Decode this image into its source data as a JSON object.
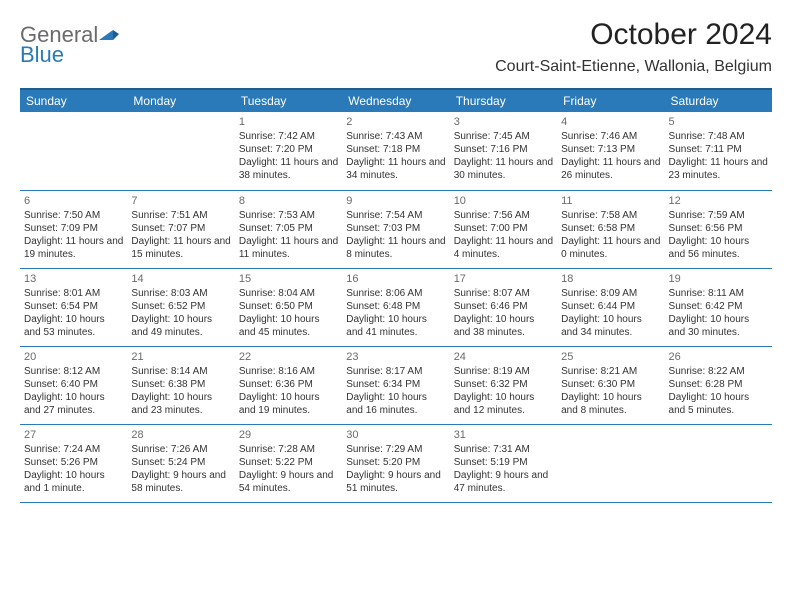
{
  "logo": {
    "word1": "General",
    "word2": "Blue"
  },
  "title": "October 2024",
  "location": "Court-Saint-Etienne, Wallonia, Belgium",
  "colors": {
    "header_bg": "#2a7ab9",
    "header_border": "#1f5d8f",
    "text": "#333333",
    "muted": "#6b6b6b",
    "bg": "#ffffff"
  },
  "day_headers": [
    "Sunday",
    "Monday",
    "Tuesday",
    "Wednesday",
    "Thursday",
    "Friday",
    "Saturday"
  ],
  "weeks": [
    [
      null,
      null,
      {
        "n": "1",
        "sr": "Sunrise: 7:42 AM",
        "ss": "Sunset: 7:20 PM",
        "dl": "Daylight: 11 hours and 38 minutes."
      },
      {
        "n": "2",
        "sr": "Sunrise: 7:43 AM",
        "ss": "Sunset: 7:18 PM",
        "dl": "Daylight: 11 hours and 34 minutes."
      },
      {
        "n": "3",
        "sr": "Sunrise: 7:45 AM",
        "ss": "Sunset: 7:16 PM",
        "dl": "Daylight: 11 hours and 30 minutes."
      },
      {
        "n": "4",
        "sr": "Sunrise: 7:46 AM",
        "ss": "Sunset: 7:13 PM",
        "dl": "Daylight: 11 hours and 26 minutes."
      },
      {
        "n": "5",
        "sr": "Sunrise: 7:48 AM",
        "ss": "Sunset: 7:11 PM",
        "dl": "Daylight: 11 hours and 23 minutes."
      }
    ],
    [
      {
        "n": "6",
        "sr": "Sunrise: 7:50 AM",
        "ss": "Sunset: 7:09 PM",
        "dl": "Daylight: 11 hours and 19 minutes."
      },
      {
        "n": "7",
        "sr": "Sunrise: 7:51 AM",
        "ss": "Sunset: 7:07 PM",
        "dl": "Daylight: 11 hours and 15 minutes."
      },
      {
        "n": "8",
        "sr": "Sunrise: 7:53 AM",
        "ss": "Sunset: 7:05 PM",
        "dl": "Daylight: 11 hours and 11 minutes."
      },
      {
        "n": "9",
        "sr": "Sunrise: 7:54 AM",
        "ss": "Sunset: 7:03 PM",
        "dl": "Daylight: 11 hours and 8 minutes."
      },
      {
        "n": "10",
        "sr": "Sunrise: 7:56 AM",
        "ss": "Sunset: 7:00 PM",
        "dl": "Daylight: 11 hours and 4 minutes."
      },
      {
        "n": "11",
        "sr": "Sunrise: 7:58 AM",
        "ss": "Sunset: 6:58 PM",
        "dl": "Daylight: 11 hours and 0 minutes."
      },
      {
        "n": "12",
        "sr": "Sunrise: 7:59 AM",
        "ss": "Sunset: 6:56 PM",
        "dl": "Daylight: 10 hours and 56 minutes."
      }
    ],
    [
      {
        "n": "13",
        "sr": "Sunrise: 8:01 AM",
        "ss": "Sunset: 6:54 PM",
        "dl": "Daylight: 10 hours and 53 minutes."
      },
      {
        "n": "14",
        "sr": "Sunrise: 8:03 AM",
        "ss": "Sunset: 6:52 PM",
        "dl": "Daylight: 10 hours and 49 minutes."
      },
      {
        "n": "15",
        "sr": "Sunrise: 8:04 AM",
        "ss": "Sunset: 6:50 PM",
        "dl": "Daylight: 10 hours and 45 minutes."
      },
      {
        "n": "16",
        "sr": "Sunrise: 8:06 AM",
        "ss": "Sunset: 6:48 PM",
        "dl": "Daylight: 10 hours and 41 minutes."
      },
      {
        "n": "17",
        "sr": "Sunrise: 8:07 AM",
        "ss": "Sunset: 6:46 PM",
        "dl": "Daylight: 10 hours and 38 minutes."
      },
      {
        "n": "18",
        "sr": "Sunrise: 8:09 AM",
        "ss": "Sunset: 6:44 PM",
        "dl": "Daylight: 10 hours and 34 minutes."
      },
      {
        "n": "19",
        "sr": "Sunrise: 8:11 AM",
        "ss": "Sunset: 6:42 PM",
        "dl": "Daylight: 10 hours and 30 minutes."
      }
    ],
    [
      {
        "n": "20",
        "sr": "Sunrise: 8:12 AM",
        "ss": "Sunset: 6:40 PM",
        "dl": "Daylight: 10 hours and 27 minutes."
      },
      {
        "n": "21",
        "sr": "Sunrise: 8:14 AM",
        "ss": "Sunset: 6:38 PM",
        "dl": "Daylight: 10 hours and 23 minutes."
      },
      {
        "n": "22",
        "sr": "Sunrise: 8:16 AM",
        "ss": "Sunset: 6:36 PM",
        "dl": "Daylight: 10 hours and 19 minutes."
      },
      {
        "n": "23",
        "sr": "Sunrise: 8:17 AM",
        "ss": "Sunset: 6:34 PM",
        "dl": "Daylight: 10 hours and 16 minutes."
      },
      {
        "n": "24",
        "sr": "Sunrise: 8:19 AM",
        "ss": "Sunset: 6:32 PM",
        "dl": "Daylight: 10 hours and 12 minutes."
      },
      {
        "n": "25",
        "sr": "Sunrise: 8:21 AM",
        "ss": "Sunset: 6:30 PM",
        "dl": "Daylight: 10 hours and 8 minutes."
      },
      {
        "n": "26",
        "sr": "Sunrise: 8:22 AM",
        "ss": "Sunset: 6:28 PM",
        "dl": "Daylight: 10 hours and 5 minutes."
      }
    ],
    [
      {
        "n": "27",
        "sr": "Sunrise: 7:24 AM",
        "ss": "Sunset: 5:26 PM",
        "dl": "Daylight: 10 hours and 1 minute."
      },
      {
        "n": "28",
        "sr": "Sunrise: 7:26 AM",
        "ss": "Sunset: 5:24 PM",
        "dl": "Daylight: 9 hours and 58 minutes."
      },
      {
        "n": "29",
        "sr": "Sunrise: 7:28 AM",
        "ss": "Sunset: 5:22 PM",
        "dl": "Daylight: 9 hours and 54 minutes."
      },
      {
        "n": "30",
        "sr": "Sunrise: 7:29 AM",
        "ss": "Sunset: 5:20 PM",
        "dl": "Daylight: 9 hours and 51 minutes."
      },
      {
        "n": "31",
        "sr": "Sunrise: 7:31 AM",
        "ss": "Sunset: 5:19 PM",
        "dl": "Daylight: 9 hours and 47 minutes."
      },
      null,
      null
    ]
  ]
}
